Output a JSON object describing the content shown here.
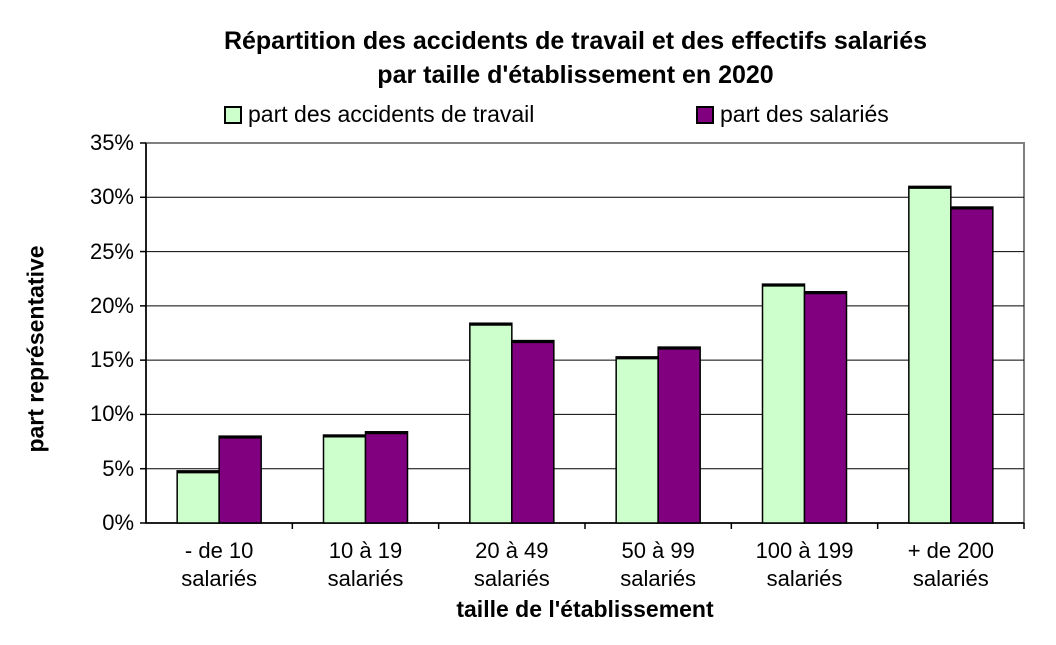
{
  "chart_data": {
    "type": "bar",
    "title_line1": "Répartition des accidents de travail et des effectifs salariés",
    "title_line2": "par taille d'établissement en 2020",
    "xlabel": "taille de l'établissement",
    "ylabel": "part représentative",
    "categories": [
      {
        "line1": "- de 10",
        "line2": "salariés"
      },
      {
        "line1": "10 à 19",
        "line2": "salariés"
      },
      {
        "line1": "20 à 49",
        "line2": "salariés"
      },
      {
        "line1": "50 à 99",
        "line2": "salariés"
      },
      {
        "line1": "100 à 199",
        "line2": "salariés"
      },
      {
        "line1": "+ de 200",
        "line2": "salariés"
      }
    ],
    "series": [
      {
        "name": "part des accidents de travail",
        "color": "#ccffcc",
        "values": [
          4.8,
          8.1,
          18.4,
          15.3,
          22.0,
          31.0
        ]
      },
      {
        "name": "part des salariés",
        "color": "#800080",
        "values": [
          8.0,
          8.4,
          16.8,
          16.2,
          21.3,
          29.1
        ]
      }
    ],
    "yticks": [
      "0%",
      "5%",
      "10%",
      "15%",
      "20%",
      "25%",
      "30%",
      "35%"
    ],
    "ylim": [
      0,
      35
    ],
    "grid": true,
    "legend_position": "top"
  }
}
